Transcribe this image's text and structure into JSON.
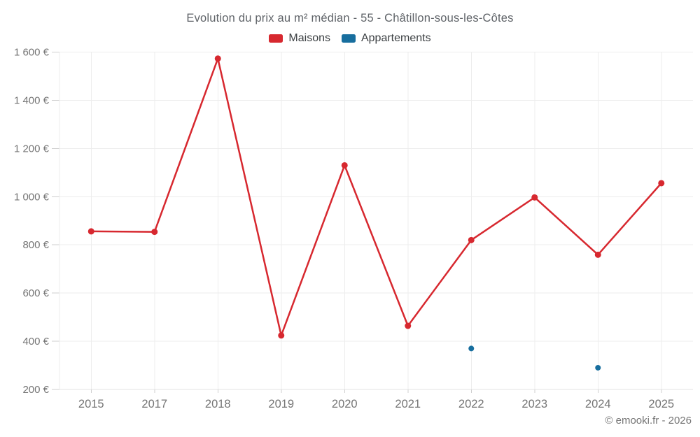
{
  "title": "Evolution du prix au m² médian - 55 - Châtillon-sous-les-Côtes",
  "legend": {
    "items": [
      {
        "label": "Maisons",
        "color": "#d7282f"
      },
      {
        "label": "Appartements",
        "color": "#176e9e"
      }
    ]
  },
  "footer": {
    "credit": "© emooki.fr - 2026"
  },
  "chart_data": {
    "type": "line",
    "title": "Evolution du prix au m² médian - 55 - Châtillon-sous-les-Côtes",
    "categories": [
      "2015",
      "2017",
      "2018",
      "2019",
      "2020",
      "2021",
      "2022",
      "2023",
      "2024",
      "2025"
    ],
    "series": [
      {
        "name": "Maisons",
        "color": "#d7282f",
        "values": [
          856,
          854,
          1573,
          424,
          1130,
          464,
          820,
          997,
          759,
          1056
        ],
        "draw_line": true,
        "point_radius": 4.5
      },
      {
        "name": "Appartements",
        "color": "#176e9e",
        "values": [
          null,
          null,
          null,
          null,
          null,
          null,
          370,
          null,
          290,
          null
        ],
        "draw_line": true,
        "point_radius": 4
      }
    ],
    "xlabel": "",
    "ylabel": "",
    "ytick_suffix": " €",
    "ylim": [
      200,
      1600
    ],
    "ytick_step": 200,
    "grid": true,
    "legend_position": "top"
  }
}
